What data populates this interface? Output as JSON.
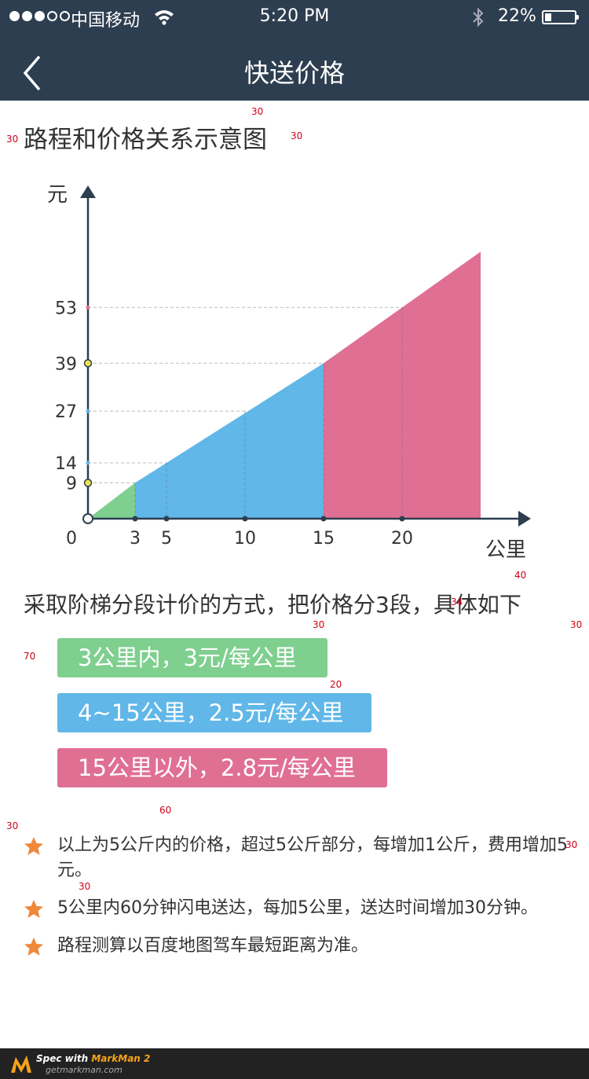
{
  "status_bar": {
    "carrier": "中国移动",
    "time": "5:20 PM",
    "battery_percent": "22%",
    "battery_level": 0.22,
    "signal_bars_filled": 3,
    "signal_bars_total": 5
  },
  "nav": {
    "title": "快送价格",
    "back_icon": "chevron-left-icon"
  },
  "section_title": "路程和价格关系示意图",
  "chart_data": {
    "type": "area",
    "ylabel": "元",
    "xlabel": "公里",
    "x_ticks": [
      "0",
      "3",
      "5",
      "10",
      "15",
      "20"
    ],
    "y_ticks": [
      "9",
      "14",
      "27",
      "39",
      "53"
    ],
    "series": [
      {
        "color": "#7fcf8f",
        "points": [
          [
            0,
            0
          ],
          [
            3,
            9
          ]
        ]
      },
      {
        "color": "#60b7e8",
        "points": [
          [
            3,
            9
          ],
          [
            15,
            39
          ]
        ]
      },
      {
        "color": "#e06f94",
        "points": [
          [
            15,
            39
          ],
          [
            25,
            67
          ]
        ]
      }
    ],
    "reference_points": [
      [
        5,
        14
      ],
      [
        10,
        27
      ],
      [
        20,
        53
      ]
    ],
    "highlight_y_markers": {
      "9": "#f0e050",
      "39": "#f0e050",
      "14": "#60b7e8",
      "27": "#60b7e8",
      "53": "#e06f94"
    }
  },
  "description": "采取阶梯分段计价的方式，把价格分3段，具体如下",
  "tiers": [
    {
      "label": "3公里内，3元/每公里",
      "color": "#7fcf8f"
    },
    {
      "label": "4~15公里，2.5元/每公里",
      "color": "#60b7e8"
    },
    {
      "label": "15公里以外，2.8元/每公里",
      "color": "#e06f94"
    }
  ],
  "notes": [
    {
      "icon": "star-icon",
      "text": "以上为5公斤内的价格，超过5公斤部分，每增加1公斤，费用增加5元。"
    },
    {
      "icon": "star-icon",
      "text": "5公里内60分钟闪电送达，每加5公里，送达时间增加30分钟。"
    },
    {
      "icon": "star-icon",
      "text": "路程测算以百度地图驾车最短距离为准。"
    }
  ],
  "annotations": {
    "a1": "30",
    "a2": "30",
    "a3": "30",
    "a4": "40",
    "a5": "34",
    "a6": "30",
    "a7": "30",
    "a8": "70",
    "a9": "20",
    "a10": "60",
    "a11": "30",
    "a12": "30",
    "a13": "30"
  },
  "footer": {
    "line1_prefix": "Spec with ",
    "line1_brand": "MarkMan 2",
    "line2": "getmarkman.com"
  },
  "colors": {
    "nav_bg": "#2d3e50",
    "green": "#7fcf8f",
    "blue": "#60b7e8",
    "pink": "#e06f94",
    "star": "#f0883a",
    "annotation": "#d0021b"
  }
}
